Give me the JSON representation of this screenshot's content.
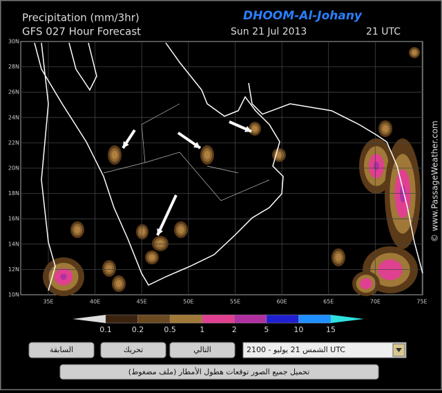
{
  "header": {
    "title": "Precipitation (mm/3hr)",
    "subtitle": "GFS 027 Hour Forecast",
    "brand": "DHOOM-Al-Johany",
    "date": "Sun 21 Jul 2013",
    "time": "21 UTC"
  },
  "watermark": "© www.PassageWeather.com",
  "map": {
    "lat_labels": [
      "30N",
      "28N",
      "26N",
      "24N",
      "22N",
      "20N",
      "18N",
      "16N",
      "14N",
      "12N",
      "10N"
    ],
    "lon_labels": [
      "35E",
      "40E",
      "45E",
      "50E",
      "55E",
      "60E",
      "65E",
      "70E",
      "75E"
    ]
  },
  "colorbar": {
    "labels": [
      "0.1",
      "0.2",
      "0.5",
      "1",
      "2",
      "5",
      "10",
      "15"
    ],
    "colors": [
      "#3a2410",
      "#6b4a22",
      "#a07838",
      "#e04090",
      "#b030a0",
      "#2020d0",
      "#2090ff",
      "#30e0e0"
    ]
  },
  "controls": {
    "prev": "السابقة",
    "animate": "تحريك",
    "next": "التالي",
    "select": "2100 - الشمس 21 يوليو UTC",
    "download": "(تحميل جميع الصور توقعات هطول الأمطار (ملف مضغوط"
  }
}
